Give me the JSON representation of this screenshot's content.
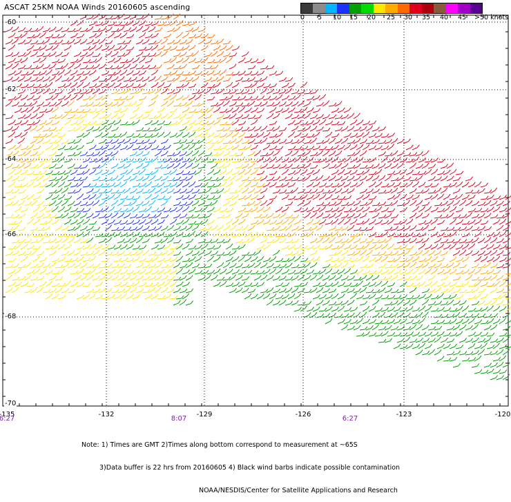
{
  "title": "ASCAT 25KM NOAA Winds 20160605 ascending",
  "legend": {
    "labels": [
      "0",
      "5",
      "10",
      "15",
      "20",
      "25",
      "30",
      "35",
      "40",
      "45",
      ">50 knots"
    ],
    "colors": [
      "#3a3a3a",
      "#8c8c8c",
      "#00b4ff",
      "#1e32ff",
      "#00a000",
      "#00dc00",
      "#ffe600",
      "#ffaa00",
      "#ff6a00",
      "#e0001c",
      "#b00010",
      "#8a5a3c",
      "#ff00ff",
      "#a000c8",
      "#5a0090"
    ]
  },
  "axes": {
    "lat_labels": [
      "-60",
      "-62",
      "-64",
      "-66",
      "-68",
      "-70"
    ],
    "lon_labels": [
      "-135",
      "-132",
      "-129",
      "-126",
      "-123",
      "-120"
    ],
    "time_labels": [
      "6:27",
      "8:07",
      "6:27"
    ]
  },
  "notes": {
    "line1": "Note: 1) Times are GMT 2)Times along bottom correspond to measurement at ~65S",
    "line2": "3)Data buffer is 22 hrs from 20160605 4) Black wind barbs indicate possible contamination",
    "line3": "NOAA/NESDIS/Center for Satellite Applications and Research"
  }
}
